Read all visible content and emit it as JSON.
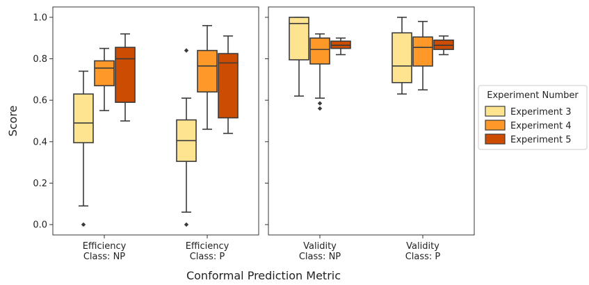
{
  "chart_data": {
    "type": "boxplot",
    "ylabel": "Score",
    "xlabel": "Conformal Prediction Metric",
    "ylim": [
      -0.05,
      1.05
    ],
    "yticks": [
      "0.0",
      "0.2",
      "0.4",
      "0.6",
      "0.8",
      "1.0"
    ],
    "legend": {
      "title": "Experiment Number",
      "placement": "right",
      "entries": [
        "Experiment 3",
        "Experiment 4",
        "Experiment 5"
      ]
    },
    "colors": [
      "#fee391",
      "#fe9929",
      "#cc4c02"
    ],
    "panels": [
      {
        "categories": [
          {
            "line1": "Efficiency",
            "line2": "Class: NP",
            "boxes": [
              {
                "series": "Experiment 3",
                "whislo": 0.09,
                "q1": 0.395,
                "med": 0.49,
                "q3": 0.63,
                "whishi": 0.74,
                "fliers": [
                  0.0
                ]
              },
              {
                "series": "Experiment 4",
                "whislo": 0.55,
                "q1": 0.67,
                "med": 0.755,
                "q3": 0.79,
                "whishi": 0.85,
                "fliers": []
              },
              {
                "series": "Experiment 5",
                "whislo": 0.5,
                "q1": 0.59,
                "med": 0.8,
                "q3": 0.855,
                "whishi": 0.92,
                "fliers": []
              }
            ]
          },
          {
            "line1": "Efficiency",
            "line2": "Class: P",
            "boxes": [
              {
                "series": "Experiment 3",
                "whislo": 0.06,
                "q1": 0.305,
                "med": 0.405,
                "q3": 0.505,
                "whishi": 0.61,
                "fliers": [
                  0.84,
                  0.0
                ]
              },
              {
                "series": "Experiment 4",
                "whislo": 0.46,
                "q1": 0.64,
                "med": 0.765,
                "q3": 0.84,
                "whishi": 0.96,
                "fliers": []
              },
              {
                "series": "Experiment 5",
                "whislo": 0.44,
                "q1": 0.515,
                "med": 0.78,
                "q3": 0.825,
                "whishi": 0.91,
                "fliers": []
              }
            ]
          }
        ]
      },
      {
        "categories": [
          {
            "line1": "Validity",
            "line2": "Class: NP",
            "boxes": [
              {
                "series": "Experiment 3",
                "whislo": 0.62,
                "q1": 0.795,
                "med": 0.97,
                "q3": 1.0,
                "whishi": 1.0,
                "fliers": []
              },
              {
                "series": "Experiment 4",
                "whislo": 0.61,
                "q1": 0.775,
                "med": 0.845,
                "q3": 0.9,
                "whishi": 0.92,
                "fliers": [
                  0.585,
                  0.56
                ]
              },
              {
                "series": "Experiment 5",
                "whislo": 0.82,
                "q1": 0.85,
                "med": 0.865,
                "q3": 0.885,
                "whishi": 0.9,
                "fliers": []
              }
            ]
          },
          {
            "line1": "Validity",
            "line2": "Class: P",
            "boxes": [
              {
                "series": "Experiment 3",
                "whislo": 0.63,
                "q1": 0.685,
                "med": 0.765,
                "q3": 0.925,
                "whishi": 1.0,
                "fliers": []
              },
              {
                "series": "Experiment 4",
                "whislo": 0.65,
                "q1": 0.765,
                "med": 0.855,
                "q3": 0.905,
                "whishi": 0.98,
                "fliers": []
              },
              {
                "series": "Experiment 5",
                "whislo": 0.82,
                "q1": 0.845,
                "med": 0.865,
                "q3": 0.89,
                "whishi": 0.91,
                "fliers": []
              }
            ]
          }
        ]
      }
    ]
  }
}
